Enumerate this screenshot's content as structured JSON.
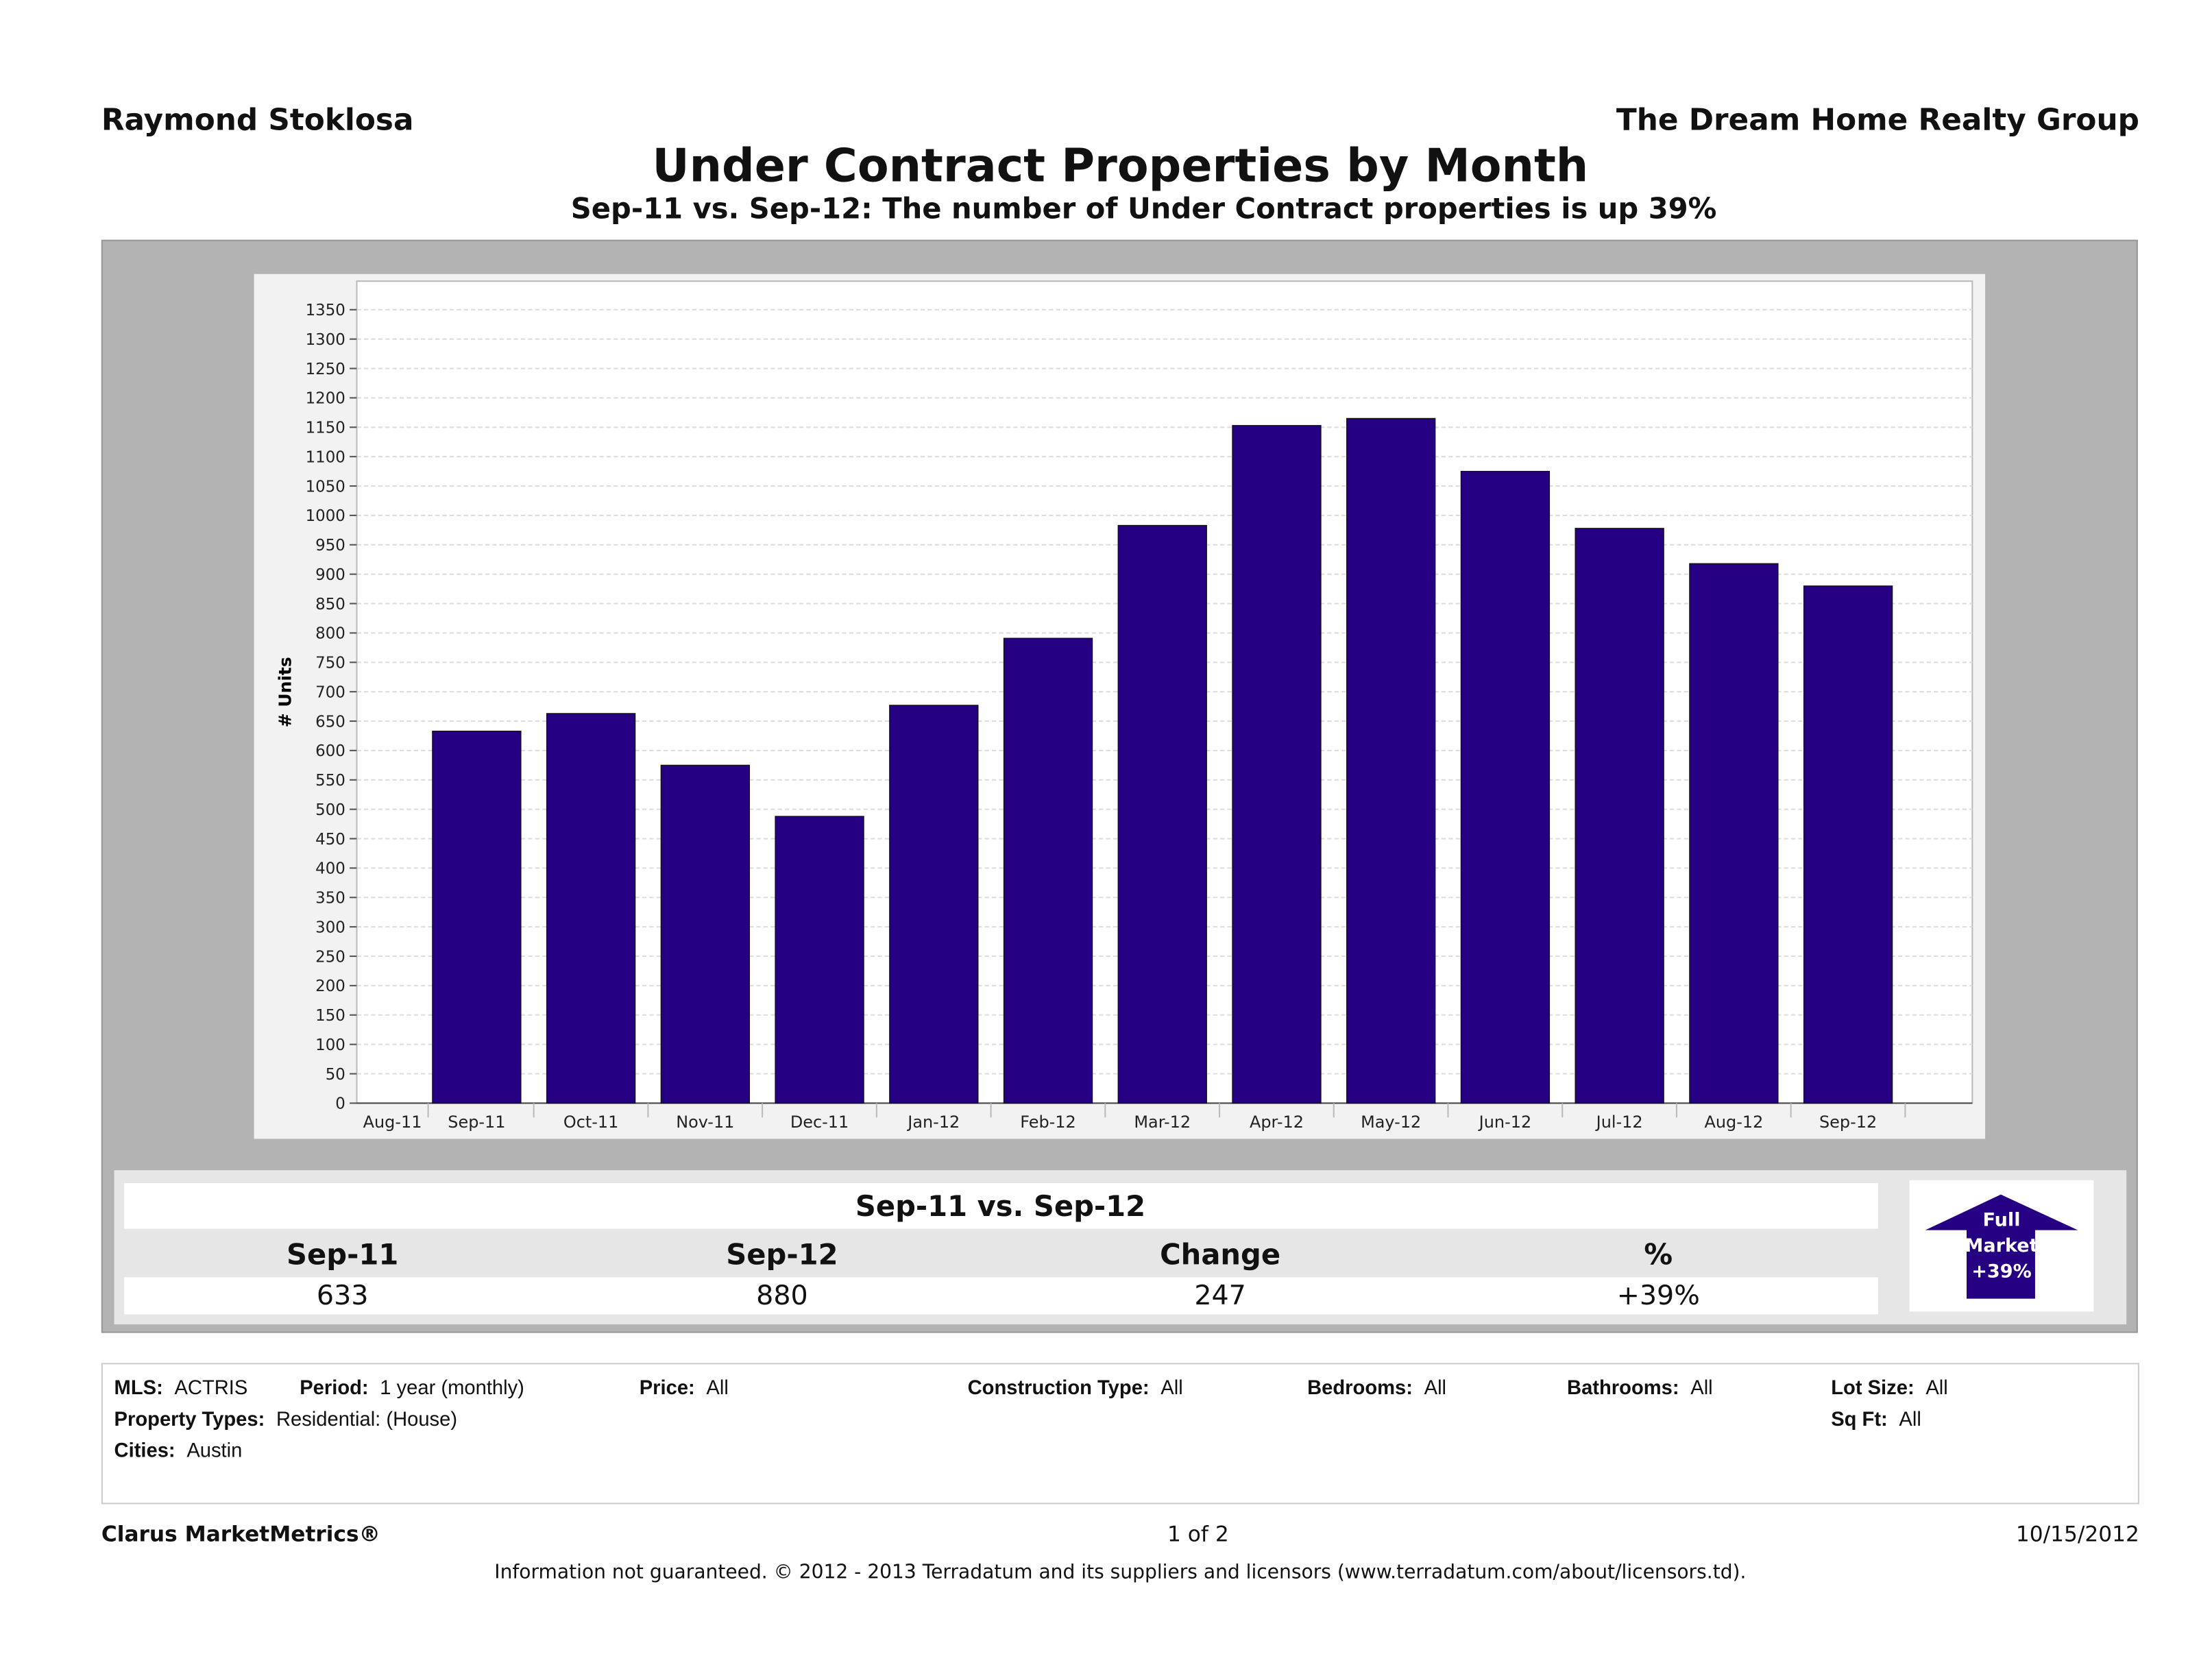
{
  "header": {
    "agent": "Raymond Stoklosa",
    "company": "The Dream Home Realty Group",
    "title": "Under Contract Properties by Month",
    "subtitle": "Sep-11 vs. Sep-12: The number of Under Contract properties is up 39%"
  },
  "chart_data": {
    "type": "bar",
    "ylabel": "# Units",
    "ylim": [
      0,
      1350
    ],
    "ytick_step": 50,
    "grid": true,
    "categories": [
      "Aug-11",
      "Sep-11",
      "Oct-11",
      "Nov-11",
      "Dec-11",
      "Jan-12",
      "Feb-12",
      "Mar-12",
      "Apr-12",
      "May-12",
      "Jun-12",
      "Jul-12",
      "Aug-12",
      "Sep-12"
    ],
    "values": [
      null,
      633,
      663,
      575,
      488,
      677,
      791,
      983,
      1153,
      1165,
      1075,
      978,
      918,
      880
    ],
    "bar_color": "#250082"
  },
  "summary": {
    "title": "Sep-11 vs. Sep-12",
    "headers": [
      "Sep-11",
      "Sep-12",
      "Change",
      "%"
    ],
    "values": [
      "633",
      "880",
      "247",
      "+39%"
    ],
    "badge": {
      "line1": "Full",
      "line2": "Market",
      "line3": "+39%",
      "icon": "arrow-up-icon",
      "color": "#250082"
    }
  },
  "info": {
    "mls_label": "MLS:",
    "mls": "ACTRIS",
    "period_label": "Period:",
    "period": "1 year (monthly)",
    "price_label": "Price:",
    "price": "All",
    "construction_label": "Construction Type:",
    "construction": "All",
    "bedrooms_label": "Bedrooms:",
    "bedrooms": "All",
    "bathrooms_label": "Bathrooms:",
    "bathrooms": "All",
    "lot_label": "Lot Size:",
    "lot": "All",
    "sqft_label": "Sq Ft:",
    "sqft": "All",
    "ptypes_label": "Property Types:",
    "ptypes": "Residential: (House)",
    "cities_label": "Cities:",
    "cities": "Austin"
  },
  "footer": {
    "brand": "Clarus MarketMetrics®",
    "page": "1 of 2",
    "date": "10/15/2012",
    "disclaimer": "Information not guaranteed.  © 2012 - 2013 Terradatum and its suppliers and licensors (www.terradatum.com/about/licensors.td)."
  }
}
